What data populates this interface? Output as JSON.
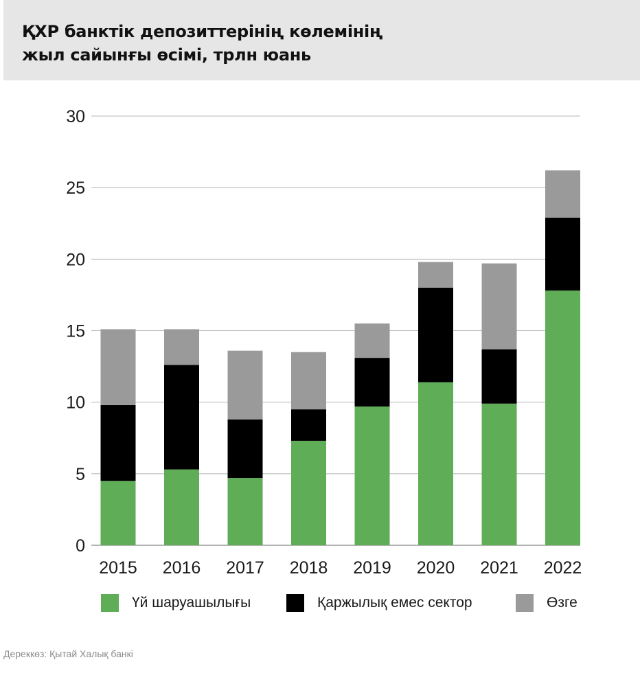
{
  "title_lines": [
    "ҚХР банктік депозиттерінің көлемінің",
    "жыл сайынғы өсімі, трлн юань"
  ],
  "source": "Дереккөз: Қытай Халық банкі",
  "colors": {
    "green": "#5fad56",
    "black": "#000000",
    "gray": "#9a9a9a",
    "header_bg": "#e6e6e6"
  },
  "chart_data": {
    "type": "bar",
    "stacked": true,
    "title": "ҚХР банктік депозиттерінің көлемінің жыл сайынғы өсімі, трлн юань",
    "xlabel": "",
    "ylabel": "",
    "ylim": [
      0,
      30
    ],
    "yticks": [
      0,
      5,
      10,
      15,
      20,
      25,
      30
    ],
    "grid": true,
    "legend_position": "bottom",
    "categories": [
      "2015",
      "2016",
      "2017",
      "2018",
      "2019",
      "2020",
      "2021",
      "2022"
    ],
    "series": [
      {
        "name": "Үй шаруашылығы",
        "color": "#5fad56",
        "values": [
          4.5,
          5.3,
          4.7,
          7.3,
          9.7,
          11.4,
          9.9,
          17.8
        ]
      },
      {
        "name": "Қаржылық емес сектор",
        "color": "#000000",
        "values": [
          5.3,
          7.3,
          4.1,
          2.2,
          3.4,
          6.6,
          3.8,
          5.1
        ]
      },
      {
        "name": "Өзге",
        "color": "#9a9a9a",
        "values": [
          5.3,
          2.5,
          4.8,
          4.0,
          2.4,
          1.8,
          6.0,
          3.3
        ]
      }
    ]
  }
}
